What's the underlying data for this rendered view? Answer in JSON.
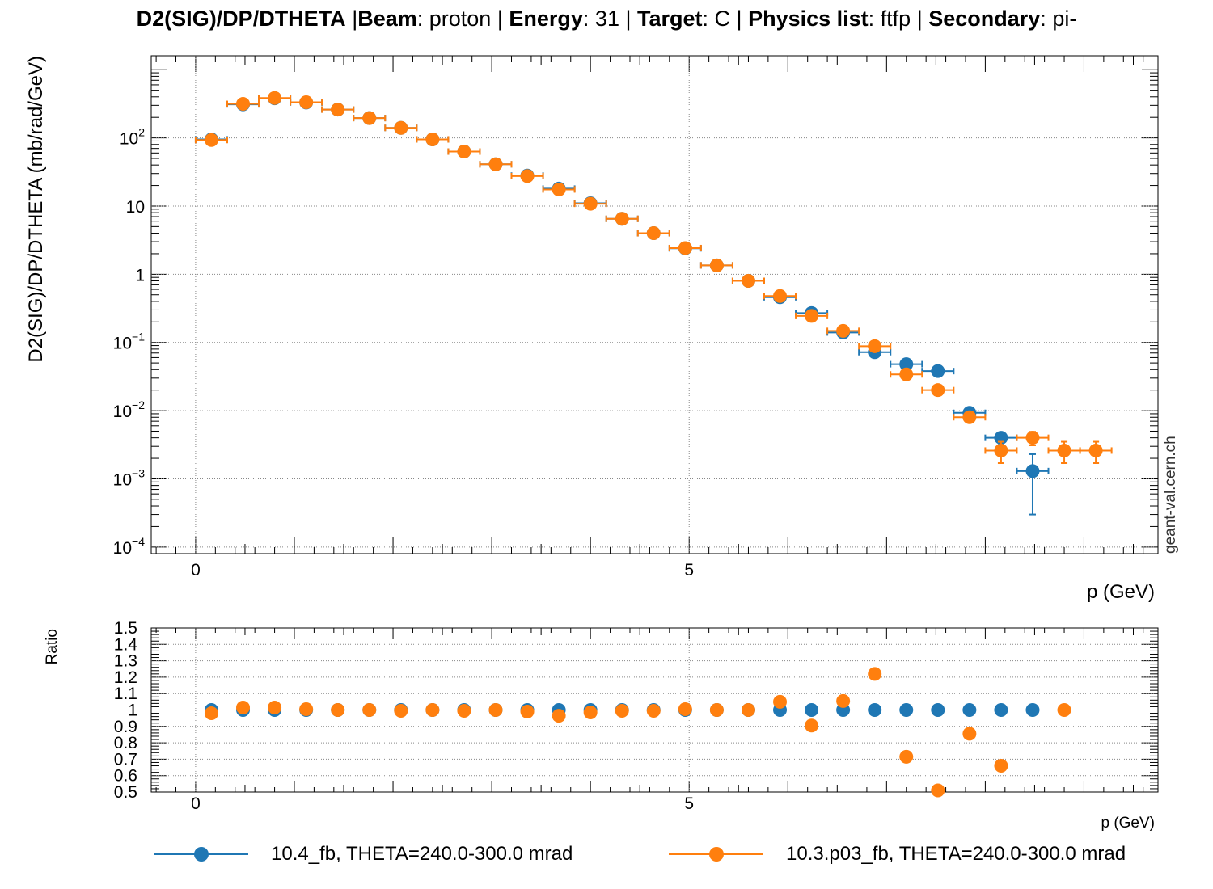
{
  "title": {
    "name": "D2(SIG)/DP/DTHETA",
    "beam_key": "Beam",
    "beam": "proton",
    "energy_key": "Energy",
    "energy": "31",
    "target_key": "Target",
    "target": "C",
    "physics_key": "Physics list",
    "physics": "ftfp",
    "secondary_key": "Secondary",
    "secondary": "pi-"
  },
  "watermark": "geant-val.cern.ch",
  "colors": {
    "series_blue": "#1f77b4",
    "series_orange": "#ff7f0e",
    "grid": "#888888"
  },
  "chart_data": [
    {
      "type": "scatter",
      "title": "D2(SIG)/DP/DTHETA",
      "xlabel": "p (GeV)",
      "ylabel": "D2(SIG)/DP/DTHETA (mb/rad/GeV)",
      "xlim": [
        -0.45,
        9.75
      ],
      "ylim": [
        8e-05,
        1600
      ],
      "yscale": "log",
      "grid": true,
      "x_tick_labels": [
        {
          "x": 0,
          "label": "0"
        },
        {
          "x": 5,
          "label": "5"
        }
      ],
      "y_tick_labels": [
        {
          "y": 100,
          "base": "10",
          "exp": "2"
        },
        {
          "y": 10,
          "base": "10",
          "exp": ""
        },
        {
          "y": 1,
          "base": "1",
          "exp": ""
        },
        {
          "y": 0.1,
          "base": "10",
          "exp": "−1"
        },
        {
          "y": 0.01,
          "base": "10",
          "exp": "−2"
        },
        {
          "y": 0.001,
          "base": "10",
          "exp": "−3"
        },
        {
          "y": 0.0001,
          "base": "10",
          "exp": "−4"
        }
      ],
      "series": [
        {
          "name": "10.4_fb, THETA=240.0-300.0 mrad",
          "color": "#1f77b4",
          "points": [
            {
              "x": 0.16,
              "y": 95,
              "xerr": 0.16,
              "yerr": 0
            },
            {
              "x": 0.48,
              "y": 310,
              "xerr": 0.16,
              "yerr": 0
            },
            {
              "x": 0.8,
              "y": 380,
              "xerr": 0.16,
              "yerr": 0
            },
            {
              "x": 1.12,
              "y": 330,
              "xerr": 0.16,
              "yerr": 0
            },
            {
              "x": 1.44,
              "y": 260,
              "xerr": 0.16,
              "yerr": 0
            },
            {
              "x": 1.76,
              "y": 195,
              "xerr": 0.16,
              "yerr": 0
            },
            {
              "x": 2.08,
              "y": 140,
              "xerr": 0.16,
              "yerr": 0
            },
            {
              "x": 2.4,
              "y": 95,
              "xerr": 0.16,
              "yerr": 0
            },
            {
              "x": 2.72,
              "y": 63,
              "xerr": 0.16,
              "yerr": 0
            },
            {
              "x": 3.04,
              "y": 41,
              "xerr": 0.16,
              "yerr": 0
            },
            {
              "x": 3.36,
              "y": 28,
              "xerr": 0.16,
              "yerr": 0
            },
            {
              "x": 3.68,
              "y": 18,
              "xerr": 0.16,
              "yerr": 0
            },
            {
              "x": 4.0,
              "y": 11,
              "xerr": 0.16,
              "yerr": 0
            },
            {
              "x": 4.32,
              "y": 6.5,
              "xerr": 0.16,
              "yerr": 0
            },
            {
              "x": 4.64,
              "y": 4.0,
              "xerr": 0.16,
              "yerr": 0
            },
            {
              "x": 4.96,
              "y": 2.4,
              "xerr": 0.16,
              "yerr": 0
            },
            {
              "x": 5.28,
              "y": 1.35,
              "xerr": 0.16,
              "yerr": 0
            },
            {
              "x": 5.6,
              "y": 0.8,
              "xerr": 0.16,
              "yerr": 0
            },
            {
              "x": 5.92,
              "y": 0.46,
              "xerr": 0.16,
              "yerr": 0
            },
            {
              "x": 6.24,
              "y": 0.27,
              "xerr": 0.16,
              "yerr": 0
            },
            {
              "x": 6.56,
              "y": 0.14,
              "xerr": 0.16,
              "yerr": 0
            },
            {
              "x": 6.88,
              "y": 0.072,
              "xerr": 0.16,
              "yerr": 0.006
            },
            {
              "x": 7.2,
              "y": 0.048,
              "xerr": 0.16,
              "yerr": 0.004
            },
            {
              "x": 7.52,
              "y": 0.038,
              "xerr": 0.16,
              "yerr": 0.003
            },
            {
              "x": 7.84,
              "y": 0.0093,
              "xerr": 0.16,
              "yerr": 0.0013
            },
            {
              "x": 8.16,
              "y": 0.004,
              "xerr": 0.16,
              "yerr": 0.0007
            },
            {
              "x": 8.48,
              "y": 0.0013,
              "xerr": 0.16,
              "yerr": 0.001
            }
          ]
        },
        {
          "name": "10.3.p03_fb, THETA=240.0-300.0 mrad",
          "color": "#ff7f0e",
          "points": [
            {
              "x": 0.16,
              "y": 93,
              "xerr": 0.16,
              "yerr": 0
            },
            {
              "x": 0.48,
              "y": 315,
              "xerr": 0.16,
              "yerr": 0
            },
            {
              "x": 0.8,
              "y": 385,
              "xerr": 0.16,
              "yerr": 0
            },
            {
              "x": 1.12,
              "y": 333,
              "xerr": 0.16,
              "yerr": 0
            },
            {
              "x": 1.44,
              "y": 260,
              "xerr": 0.16,
              "yerr": 0
            },
            {
              "x": 1.76,
              "y": 195,
              "xerr": 0.16,
              "yerr": 0
            },
            {
              "x": 2.08,
              "y": 140,
              "xerr": 0.16,
              "yerr": 0
            },
            {
              "x": 2.4,
              "y": 95,
              "xerr": 0.16,
              "yerr": 0
            },
            {
              "x": 2.72,
              "y": 63,
              "xerr": 0.16,
              "yerr": 0
            },
            {
              "x": 3.04,
              "y": 41,
              "xerr": 0.16,
              "yerr": 0
            },
            {
              "x": 3.36,
              "y": 27.5,
              "xerr": 0.16,
              "yerr": 0
            },
            {
              "x": 3.68,
              "y": 17.5,
              "xerr": 0.16,
              "yerr": 0
            },
            {
              "x": 4.0,
              "y": 10.8,
              "xerr": 0.16,
              "yerr": 0
            },
            {
              "x": 4.32,
              "y": 6.5,
              "xerr": 0.16,
              "yerr": 0
            },
            {
              "x": 4.64,
              "y": 4.0,
              "xerr": 0.16,
              "yerr": 0
            },
            {
              "x": 4.96,
              "y": 2.42,
              "xerr": 0.16,
              "yerr": 0
            },
            {
              "x": 5.28,
              "y": 1.35,
              "xerr": 0.16,
              "yerr": 0
            },
            {
              "x": 5.6,
              "y": 0.8,
              "xerr": 0.16,
              "yerr": 0
            },
            {
              "x": 5.92,
              "y": 0.48,
              "xerr": 0.16,
              "yerr": 0
            },
            {
              "x": 6.24,
              "y": 0.245,
              "xerr": 0.16,
              "yerr": 0
            },
            {
              "x": 6.56,
              "y": 0.148,
              "xerr": 0.16,
              "yerr": 0
            },
            {
              "x": 6.88,
              "y": 0.088,
              "xerr": 0.16,
              "yerr": 0.007
            },
            {
              "x": 7.2,
              "y": 0.034,
              "xerr": 0.16,
              "yerr": 0.003
            },
            {
              "x": 7.52,
              "y": 0.02,
              "xerr": 0.16,
              "yerr": 0.002
            },
            {
              "x": 7.84,
              "y": 0.008,
              "xerr": 0.16,
              "yerr": 0.0012
            },
            {
              "x": 8.16,
              "y": 0.0026,
              "xerr": 0.16,
              "yerr": 0.0009
            },
            {
              "x": 8.48,
              "y": 0.004,
              "xerr": 0.16,
              "yerr": 0.0009
            },
            {
              "x": 8.8,
              "y": 0.0026,
              "xerr": 0.16,
              "yerr": 0.0009
            },
            {
              "x": 9.12,
              "y": 0.0026,
              "xerr": 0.16,
              "yerr": 0.0009
            }
          ]
        }
      ]
    },
    {
      "type": "scatter",
      "xlabel": "p (GeV)",
      "ylabel": "Ratio",
      "xlim": [
        -0.45,
        9.75
      ],
      "ylim": [
        0.5,
        1.5
      ],
      "grid": true,
      "x_tick_labels": [
        {
          "x": 0,
          "label": "0"
        },
        {
          "x": 5,
          "label": "5"
        }
      ],
      "y_tick_labels": [
        "0.5",
        "0.6",
        "0.7",
        "0.8",
        "0.9",
        "1",
        "1.1",
        "1.2",
        "1.3",
        "1.4",
        "1.5"
      ],
      "series": [
        {
          "name": "10.4_fb, THETA=240.0-300.0 mrad",
          "color": "#1f77b4",
          "x": [
            0.16,
            0.48,
            0.8,
            1.12,
            1.44,
            1.76,
            2.08,
            2.4,
            2.72,
            3.04,
            3.36,
            3.68,
            4.0,
            4.32,
            4.64,
            4.96,
            5.28,
            5.6,
            5.92,
            6.24,
            6.56,
            6.88,
            7.2,
            7.52,
            7.84,
            8.16,
            8.48
          ],
          "y": [
            1,
            1,
            1,
            1,
            1,
            1,
            1,
            1,
            1,
            1,
            1,
            1,
            1,
            1,
            1,
            1,
            1,
            1,
            1,
            1,
            1,
            1,
            1,
            1,
            1,
            1,
            1
          ]
        },
        {
          "name": "10.3.p03_fb, THETA=240.0-300.0 mrad",
          "color": "#ff7f0e",
          "x": [
            0.16,
            0.48,
            0.8,
            1.12,
            1.44,
            1.76,
            2.08,
            2.4,
            2.72,
            3.04,
            3.36,
            3.68,
            4.0,
            4.32,
            4.64,
            4.96,
            5.28,
            5.6,
            5.92,
            6.24,
            6.56,
            6.88,
            7.2,
            7.52,
            7.84,
            8.16,
            8.8
          ],
          "y": [
            0.98,
            1.015,
            1.015,
            1.005,
            1.0,
            1.0,
            0.995,
            1.0,
            0.995,
            1.0,
            0.99,
            0.965,
            0.985,
            0.995,
            0.995,
            1.005,
            1.0,
            1.0,
            1.05,
            0.905,
            1.055,
            1.22,
            0.715,
            0.51,
            0.855,
            0.66,
            1.0
          ]
        }
      ]
    }
  ]
}
